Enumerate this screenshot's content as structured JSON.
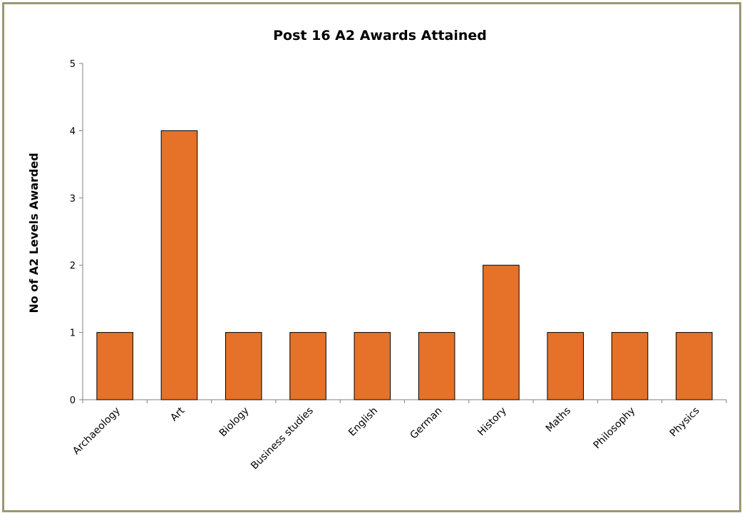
{
  "chart_data": {
    "type": "bar",
    "title": "Post 16 A2 Awards Attained",
    "xlabel": "",
    "ylabel": "No of A2 Levels Awarded",
    "categories": [
      "Archaeology",
      "Art",
      "Biology",
      "Business studies",
      "English",
      "German",
      "History",
      "Maths",
      "Philosophy",
      "Physics"
    ],
    "values": [
      1,
      4,
      1,
      1,
      1,
      1,
      2,
      1,
      1,
      1
    ],
    "ylim": [
      0,
      5
    ],
    "yticks": [
      "0",
      "1",
      "2",
      "3",
      "4",
      "5"
    ],
    "grid": false,
    "legend": "none",
    "colors": {
      "bar": "#e57228",
      "bar_stroke": "#000000",
      "frame": "#9e9671",
      "axis": "#808080"
    }
  }
}
